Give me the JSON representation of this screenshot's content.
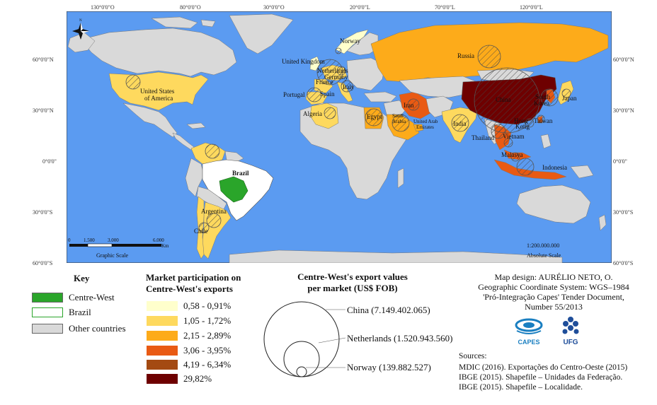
{
  "map": {
    "top_coords": [
      "130°0'0\"O",
      "80°0'0\"O",
      "30°0'0\"O",
      "20°0'0\"L",
      "70°0'0\"L",
      "120°0'0\"L"
    ],
    "left_coords": [
      "60°0'0\"N",
      "30°0'0\"N",
      "0°0'0\"",
      "30°0'0\"S",
      "60°0'0\"S"
    ],
    "right_coords": [
      "60°0'0\"N",
      "30°0'0\"N",
      "0°0'0\"",
      "30°0'0\"S",
      "60°0'0\"S"
    ],
    "north_label": "N",
    "countries": {
      "norway": "Norway",
      "russia": "Russia",
      "uk": "United Kingdom",
      "netherlands": "Netherlands",
      "germany": "Germany",
      "france": "France",
      "italy": "Italy",
      "portugal": "Portugal",
      "spain": "Spain",
      "usa_1": "United States",
      "usa_2": "of America",
      "algeria": "Algeria",
      "egypt": "Egypt",
      "saudi_1": "Saudi",
      "saudi_2": "Arabia",
      "uae_1": "United Arab",
      "uae_2": "Emirates",
      "iran": "Iran",
      "india": "India",
      "china": "China",
      "south_korea_1": "South",
      "south_korea_2": "Korea",
      "japan": "Japan",
      "hong_kong_1": "Hong",
      "hong_kong_2": "Kong",
      "taiwan": "Taiwan",
      "thailand": "Thailand",
      "vietnam": "Vietnam",
      "malaysia": "Malasya",
      "indonesia": "Indonesia",
      "brazil": "Brazil",
      "argentina": "Argentina",
      "chile": "Chile"
    },
    "scale": {
      "ticks": [
        "0",
        "1.500",
        "3.000",
        "6.000"
      ],
      "unit": "Km",
      "graphic_label": "Graphic Scale",
      "absolute_value": "1:200.000.000",
      "absolute_label": "Absolute Scale"
    },
    "colors": {
      "ocean": "#5b9bf1",
      "other": "#d9d9d9",
      "c1": "#ffffcc",
      "c2": "#fed95e",
      "c3": "#fdab1a",
      "c4": "#e95a13",
      "c5": "#a44a12",
      "c6": "#6e0000",
      "centre_west": "#2aa52a"
    }
  },
  "key": {
    "title": "Key",
    "items": [
      {
        "label": "Centre-West",
        "color": "#2aa52a"
      },
      {
        "label": "Brazil",
        "color": "#ffffff"
      },
      {
        "label": "Other countries",
        "color": "#d9d9d9"
      }
    ]
  },
  "participation": {
    "title_1": "Market participation on",
    "title_2": "Centre-West's exports",
    "classes": [
      {
        "label": "0,58 - 0,91%",
        "color": "#ffffcc"
      },
      {
        "label": "1,05 - 1,72%",
        "color": "#fed95e"
      },
      {
        "label": "2,15 - 2,89%",
        "color": "#fdab1a"
      },
      {
        "label": "3,06 - 3,95%",
        "color": "#e95a13"
      },
      {
        "label": "4,19 - 6,34%",
        "color": "#a44a12"
      },
      {
        "label": "29,82%",
        "color": "#6e0000"
      }
    ]
  },
  "export_values": {
    "title_1": "Centre-West's export values",
    "title_2": "per market (US$ FOB)",
    "circles": [
      {
        "label": "China (7.149.402.065)",
        "value": 7149402065
      },
      {
        "label": "Netherlands (1.520.943.560)",
        "value": 1520943560
      },
      {
        "label": "Norway (139.882.527)",
        "value": 139882527
      }
    ]
  },
  "credits": {
    "lines": [
      "Map design: AURÉLIO NETO, O.",
      "Geographic Coordinate System: WGS–1984",
      "'Pró-Integração Capes' Tender Document,",
      "Number 55/2013"
    ],
    "logo_capes": "CAPES",
    "logo_ufg": "UFG"
  },
  "sources": {
    "title": "Sources:",
    "lines": [
      "MDIC (2016). Exportações do Centro-Oeste (2015)",
      "IBGE (2015).  Shapefile – Unidades da Federação.",
      "IBGE (2015). Shapefile – Localidade."
    ]
  }
}
